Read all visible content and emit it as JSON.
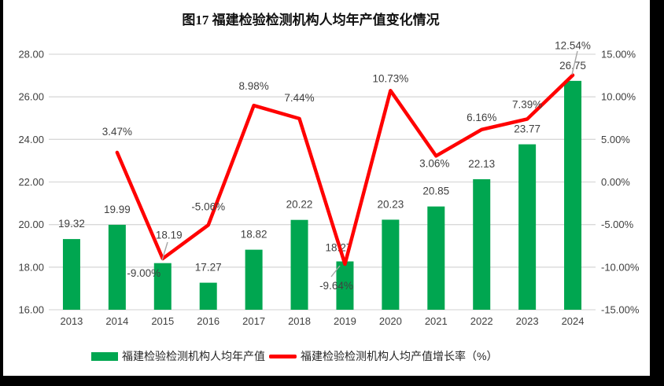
{
  "page": {
    "background_color": "#FFFFFF",
    "frame_color": "#000000"
  },
  "chart_data": {
    "type": "bar",
    "title": "图17  福建检验检测机构人均年产值变化情况",
    "categories": [
      "2013",
      "2014",
      "2015",
      "2016",
      "2017",
      "2018",
      "2019",
      "2020",
      "2021",
      "2022",
      "2023",
      "2024"
    ],
    "series": [
      {
        "name": "福建检验检测机构人均年产值",
        "type": "bar",
        "axis": "left",
        "color": "#00A650",
        "values": [
          19.32,
          19.99,
          18.19,
          17.27,
          18.82,
          20.22,
          18.27,
          20.23,
          20.85,
          22.13,
          23.77,
          26.75
        ],
        "labels": [
          "19.32",
          "19.99",
          "18.19",
          "17.27",
          "18.82",
          "20.22",
          "18.27",
          "20.23",
          "20.85",
          "22.13",
          "23.77",
          "26.75"
        ]
      },
      {
        "name": "福建检验检测机构人均产值增长率（%）",
        "type": "line",
        "axis": "right",
        "color": "#FF0000",
        "values": [
          null,
          3.47,
          -9.0,
          -5.06,
          8.98,
          7.44,
          -9.64,
          10.73,
          3.06,
          6.16,
          7.39,
          12.54
        ],
        "labels": [
          null,
          "3.47%",
          "-9.00%",
          "-5.06%",
          "8.98%",
          "7.44%",
          "-9.64%",
          "10.73%",
          "3.06%",
          "6.16%",
          "7.39%",
          "12.54%"
        ]
      }
    ],
    "left_axis": {
      "min": 16,
      "max": 28,
      "step": 2,
      "ticks": [
        "16.00",
        "18.00",
        "20.00",
        "22.00",
        "24.00",
        "26.00",
        "28.00"
      ]
    },
    "right_axis": {
      "min": -15,
      "max": 15,
      "step": 5,
      "ticks": [
        "-15.00%",
        "-10.00%",
        "-5.00%",
        "0.00%",
        "5.00%",
        "10.00%",
        "15.00%"
      ]
    },
    "grid": true,
    "gridline_color": "#D9D9D9",
    "label_color": "#404040",
    "leader_line_color": "#A6A6A6",
    "legend_position": "bottom"
  }
}
